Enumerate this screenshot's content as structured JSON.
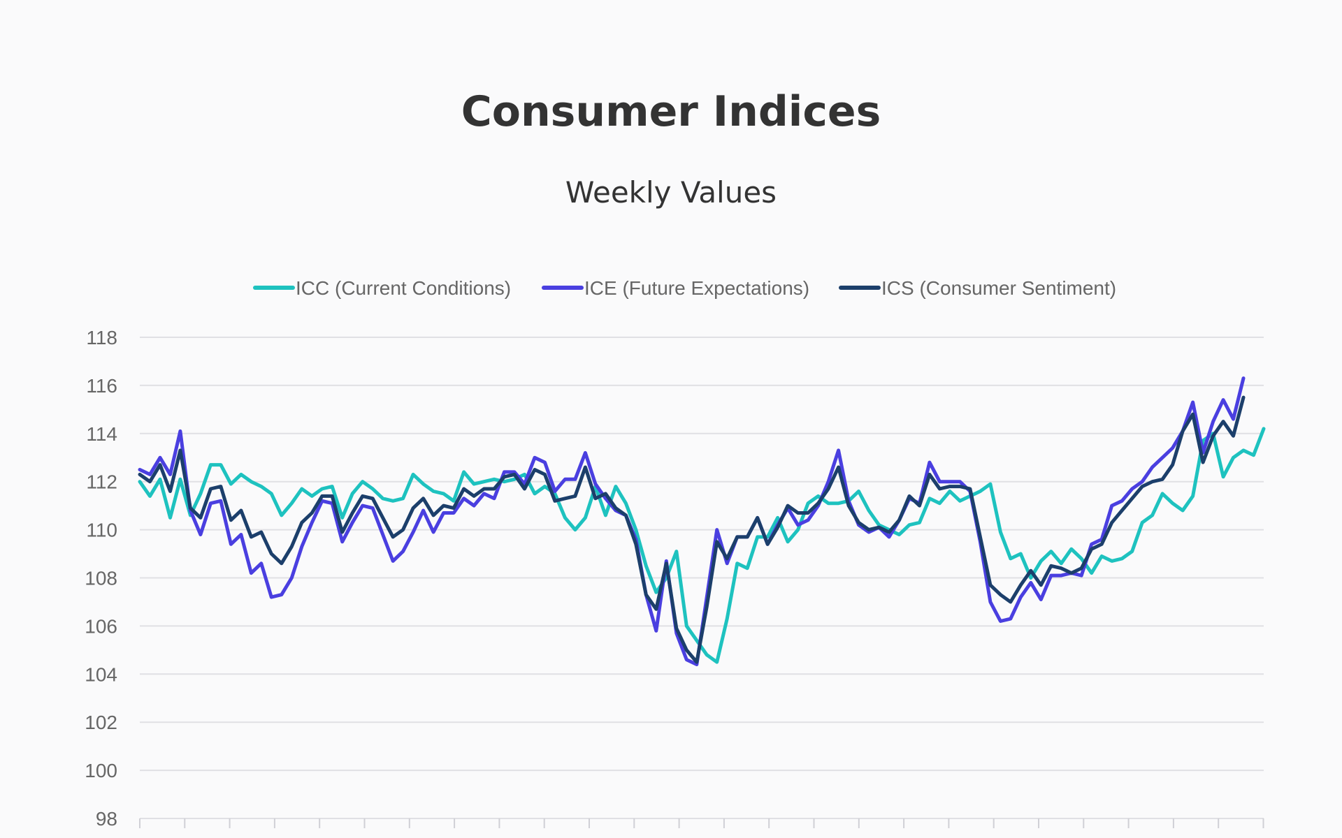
{
  "chart_data": {
    "type": "line",
    "title": "Consumer Indices",
    "subtitle": "Weekly Values",
    "ylim": [
      98,
      118
    ],
    "yticks": [
      98,
      100,
      102,
      104,
      106,
      108,
      110,
      112,
      114,
      116,
      118
    ],
    "grid": true,
    "legend_position": "top",
    "series": [
      {
        "name": "ICC (Current Conditions)",
        "color": "#1ec2bf",
        "values": [
          112.0,
          111.4,
          112.1,
          110.5,
          112.1,
          110.6,
          111.5,
          112.7,
          112.7,
          111.9,
          112.3,
          112.0,
          111.8,
          111.5,
          110.6,
          111.1,
          111.7,
          111.4,
          111.7,
          111.8,
          110.5,
          111.5,
          112.0,
          111.7,
          111.3,
          111.2,
          111.3,
          112.3,
          111.9,
          111.6,
          111.5,
          111.2,
          112.4,
          111.9,
          112.0,
          112.1,
          112.0,
          112.1,
          112.3,
          111.5,
          111.8,
          111.5,
          110.5,
          110.0,
          110.5,
          111.8,
          110.6,
          111.8,
          111.1,
          110.0,
          108.5,
          107.4,
          108.0,
          109.1,
          106.0,
          105.4,
          104.8,
          104.5,
          106.3,
          108.6,
          108.4,
          109.7,
          109.7,
          110.5,
          109.5,
          110.0,
          111.1,
          111.4,
          111.1,
          111.1,
          111.2,
          111.6,
          110.8,
          110.2,
          110.0,
          109.8,
          110.2,
          110.3,
          111.3,
          111.1,
          111.6,
          111.2,
          111.4,
          111.6,
          111.9,
          109.9,
          108.8,
          109.0,
          108.0,
          108.7,
          109.1,
          108.6,
          109.2,
          108.8,
          108.2,
          108.9,
          108.7,
          108.8,
          109.1,
          110.3,
          110.6,
          111.5,
          111.1,
          110.8,
          111.4,
          113.7,
          114.0,
          112.2,
          113.0,
          113.3,
          113.1,
          114.2
        ]
      },
      {
        "name": "ICE (Future Expectations)",
        "color": "#4a3fe0",
        "values": [
          112.5,
          112.3,
          113.0,
          112.3,
          114.1,
          110.8,
          109.8,
          111.1,
          111.2,
          109.4,
          109.8,
          108.2,
          108.6,
          107.2,
          107.3,
          108.0,
          109.3,
          110.3,
          111.2,
          111.1,
          109.5,
          110.3,
          111.0,
          110.9,
          109.8,
          108.7,
          109.1,
          109.9,
          110.8,
          109.9,
          110.7,
          110.7,
          111.3,
          111.0,
          111.5,
          111.3,
          112.4,
          112.4,
          111.9,
          113.0,
          112.8,
          111.6,
          112.1,
          112.1,
          113.2,
          111.9,
          111.3,
          110.8,
          110.6,
          109.6,
          107.3,
          105.8,
          108.7,
          105.7,
          104.6,
          104.4,
          107.2,
          110.0,
          108.6,
          109.7,
          109.7,
          110.5,
          109.4,
          110.2,
          110.9,
          110.2,
          110.4,
          111.0,
          112.0,
          113.3,
          111.2,
          110.2,
          109.9,
          110.1,
          109.7,
          110.4,
          111.3,
          111.1,
          112.8,
          112.0,
          112.0,
          112.0,
          111.6,
          109.5,
          107.0,
          106.2,
          106.3,
          107.2,
          107.8,
          107.1,
          108.1,
          108.1,
          108.2,
          108.1,
          109.4,
          109.6,
          111.0,
          111.2,
          111.7,
          112.0,
          112.6,
          113.0,
          113.4,
          114.1,
          115.3,
          113.2,
          114.5,
          115.4,
          114.6,
          116.3
        ]
      },
      {
        "name": "ICS (Consumer Sentiment)",
        "color": "#1c3f6b",
        "values": [
          112.3,
          112.0,
          112.7,
          111.6,
          113.3,
          110.9,
          110.5,
          111.7,
          111.8,
          110.4,
          110.8,
          109.7,
          109.9,
          109.0,
          108.6,
          109.3,
          110.3,
          110.7,
          111.4,
          111.4,
          109.9,
          110.7,
          111.4,
          111.3,
          110.5,
          109.7,
          110.0,
          110.9,
          111.3,
          110.6,
          111.0,
          110.9,
          111.7,
          111.4,
          111.7,
          111.7,
          112.2,
          112.3,
          111.7,
          112.5,
          112.3,
          111.2,
          111.3,
          111.4,
          112.6,
          111.3,
          111.5,
          110.9,
          110.6,
          109.4,
          107.3,
          106.7,
          108.6,
          105.9,
          105.0,
          104.5,
          106.8,
          109.5,
          108.8,
          109.7,
          109.7,
          110.5,
          109.4,
          110.1,
          111.0,
          110.7,
          110.7,
          111.1,
          111.7,
          112.6,
          111.0,
          110.3,
          110.0,
          110.1,
          109.9,
          110.4,
          111.4,
          111.0,
          112.3,
          111.7,
          111.8,
          111.8,
          111.7,
          109.7,
          107.7,
          107.3,
          107.0,
          107.7,
          108.3,
          107.7,
          108.5,
          108.4,
          108.2,
          108.4,
          109.2,
          109.4,
          110.3,
          110.8,
          111.3,
          111.8,
          112.0,
          112.1,
          112.7,
          114.1,
          114.8,
          112.8,
          113.9,
          114.5,
          113.9,
          115.5
        ]
      }
    ]
  }
}
